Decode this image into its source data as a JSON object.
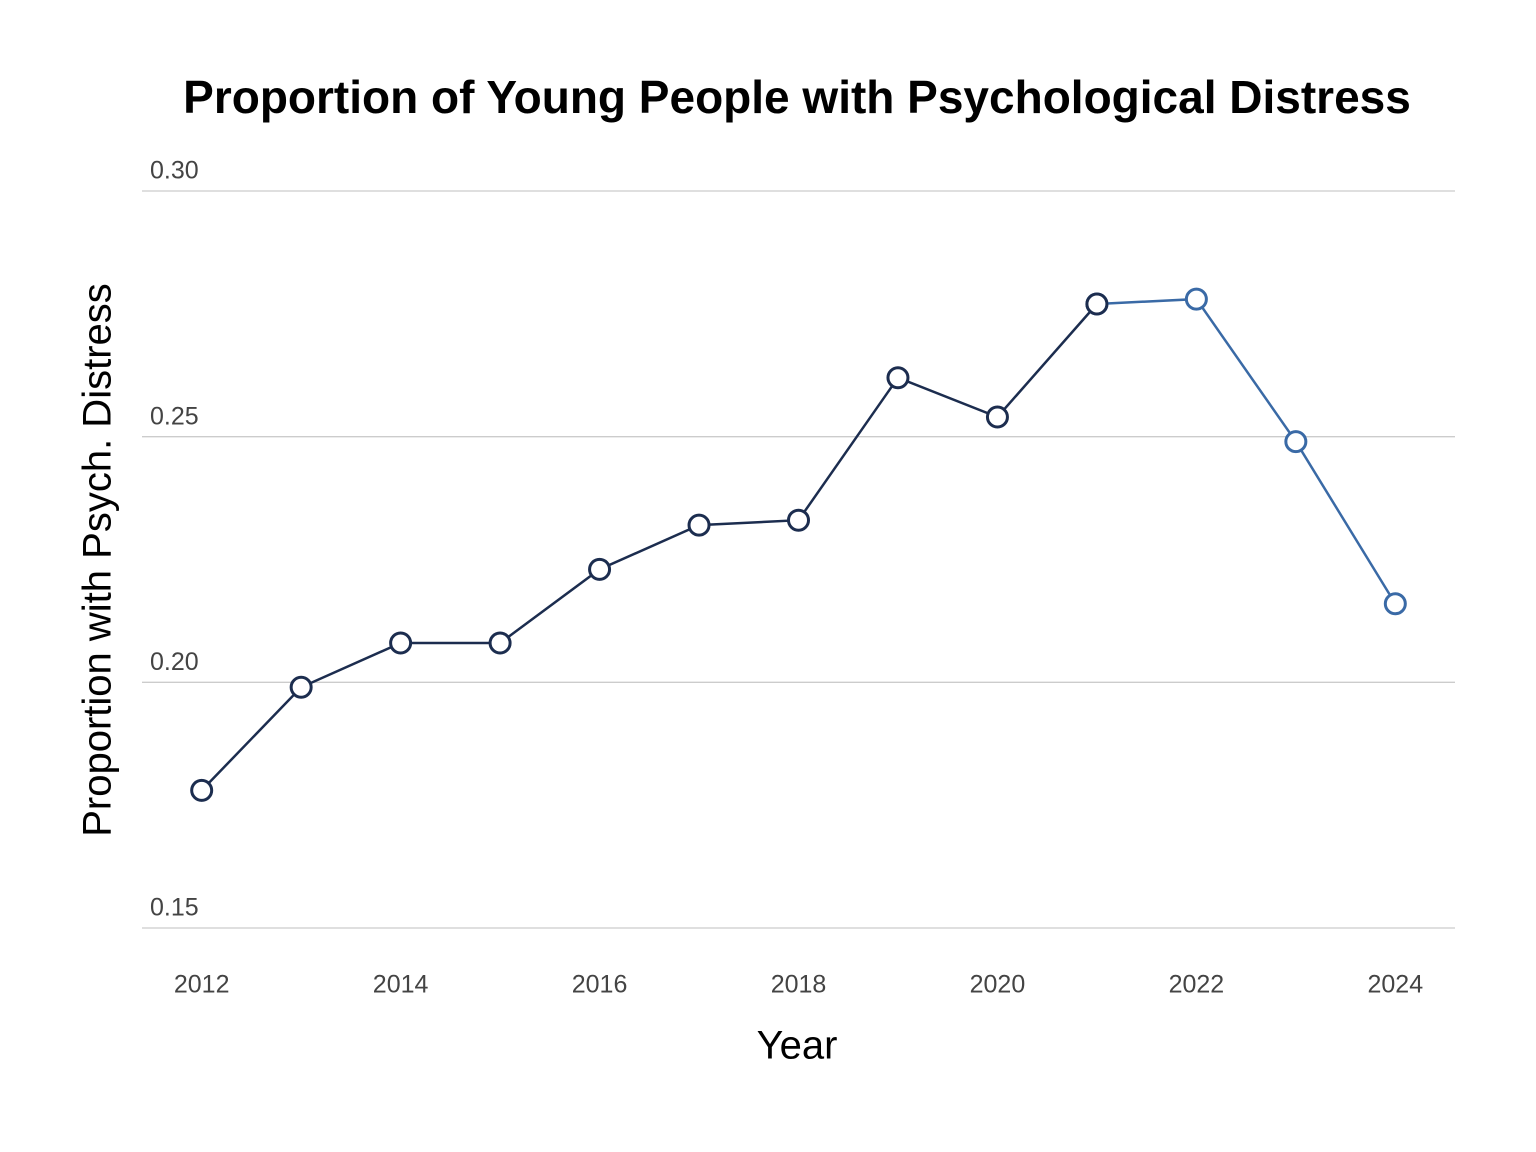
{
  "chart_data": {
    "type": "line",
    "title": "Proportion of Young People with Psychological Distress",
    "x_label": "Year",
    "y_label": "Proportion with Psych. Distress",
    "x": [
      2012,
      2013,
      2014,
      2015,
      2016,
      2017,
      2018,
      2019,
      2020,
      2021,
      2022,
      2023,
      2024
    ],
    "series": [
      {
        "color": "#3a6aa6",
        "values": [
          null,
          null,
          null,
          null,
          null,
          null,
          null,
          null,
          null,
          0.277,
          0.278,
          0.249,
          0.216
        ]
      },
      {
        "color": "#1c2d4f",
        "values": [
          0.178,
          0.199,
          0.208,
          0.208,
          0.223,
          0.232,
          0.233,
          0.262,
          0.254,
          0.277,
          null,
          null,
          null
        ]
      }
    ],
    "xlim": [
      2011.4,
      2024.6
    ],
    "xticks": [
      2012,
      2014,
      2016,
      2018,
      2020,
      2022,
      2024
    ],
    "ylim": [
      0.15,
      0.3
    ],
    "yticks": [
      {
        "value": 0.15,
        "label": "0.15"
      },
      {
        "value": 0.2,
        "label": "0.20"
      },
      {
        "value": 0.25,
        "label": "0.25"
      },
      {
        "value": 0.3,
        "label": "0.30"
      }
    ],
    "grid": true
  }
}
